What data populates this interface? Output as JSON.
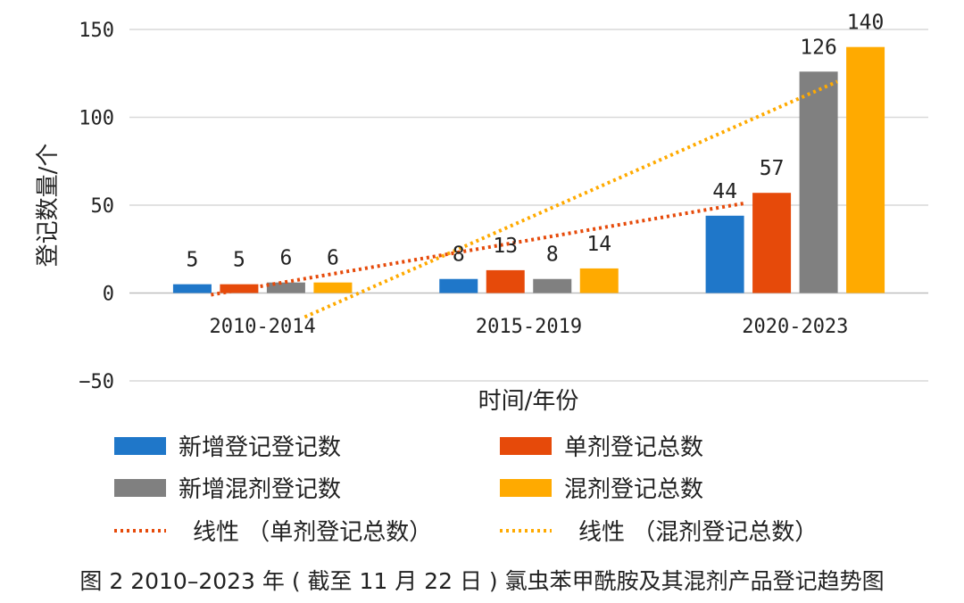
{
  "caption": "图 2 2010–2023 年 ( 截至 11 月 22 日 ) 氯虫苯甲酰胺及其混剂产品登记趋势图",
  "chart_data": {
    "type": "bar",
    "title": "",
    "xlabel": "时间/年份",
    "ylabel": "登记数量/个",
    "ylim": [
      -50,
      150
    ],
    "yticks": [
      -50,
      0,
      50,
      100,
      150
    ],
    "grid": true,
    "legend_position": "bottom",
    "categories": [
      "2010-2014",
      "2015-2019",
      "2020-2023"
    ],
    "series": [
      {
        "name": "新增登记登记数",
        "color": "#1f77c9",
        "values": [
          5,
          8,
          44
        ]
      },
      {
        "name": "单剂登记总数",
        "color": "#e64a0a",
        "values": [
          5,
          13,
          57
        ]
      },
      {
        "name": "新增混剂登记数",
        "color": "#808080",
        "values": [
          6,
          8,
          126
        ]
      },
      {
        "name": "混剂登记总数",
        "color": "#ffaa00",
        "values": [
          6,
          14,
          140
        ]
      }
    ],
    "trendlines": [
      {
        "name": "线性 （单剂登记总数）",
        "color": "#e64a0a",
        "of_series": 1,
        "type": "linear"
      },
      {
        "name": "线性 （混剂登记总数）",
        "color": "#ffaa00",
        "of_series": 3,
        "type": "linear"
      }
    ]
  }
}
